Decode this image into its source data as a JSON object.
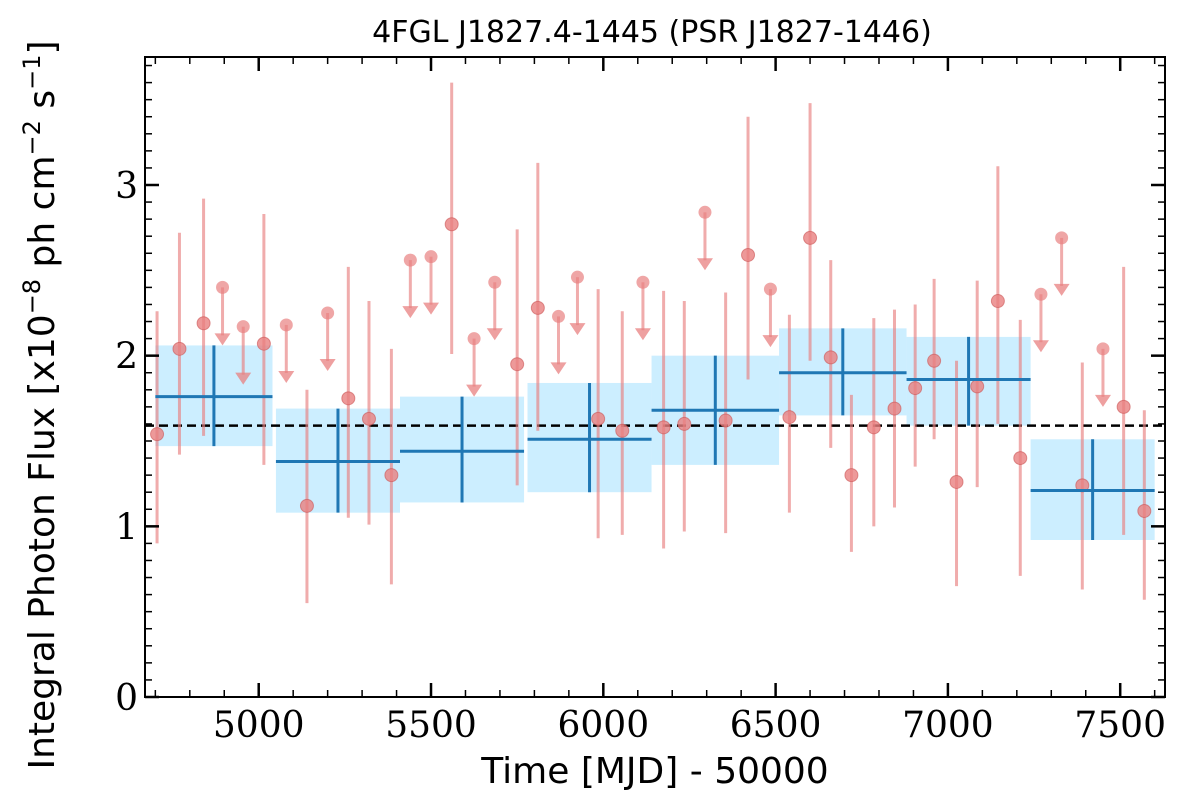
{
  "chart_data": {
    "type": "scatter",
    "title": "4FGL J1827.4-1445 (PSR J1827-1446)",
    "xlabel": "Time [MJD] - 50000",
    "ylabel_main": "Integral Photon Flux [x10",
    "ylabel_exp1": "−8",
    "ylabel_mid": " ph cm",
    "ylabel_exp2": "−2",
    "ylabel_s": " s",
    "ylabel_exp3": "−1",
    "ylabel_end": "]",
    "xlim": [
      4670,
      7630
    ],
    "ylim": [
      0,
      3.75
    ],
    "xticks": [
      5000,
      5500,
      6000,
      6500,
      7000,
      7500
    ],
    "yticks": [
      0,
      1,
      2,
      3
    ],
    "grid": false,
    "reference_line": {
      "y": 1.59,
      "style": "dashed",
      "color": "#000000"
    },
    "colors": {
      "short_bin": "#e88080",
      "long_bin_line": "#1f77b4",
      "long_bin_band": "#cceeff"
    },
    "series": [
      {
        "points": [
          {
            "x": 4705,
            "y": 1.54,
            "ylo": 0.9,
            "yhi": 2.26
          },
          {
            "x": 4770,
            "y": 2.04,
            "ylo": 1.42,
            "yhi": 2.72
          },
          {
            "x": 4840,
            "y": 2.19,
            "ylo": 1.53,
            "yhi": 2.92
          },
          {
            "x": 5015,
            "y": 2.07,
            "ylo": 1.36,
            "yhi": 2.83
          },
          {
            "x": 5140,
            "y": 1.12,
            "ylo": 0.55,
            "yhi": 1.8
          },
          {
            "x": 5260,
            "y": 1.75,
            "ylo": 1.05,
            "yhi": 2.52
          },
          {
            "x": 5320,
            "y": 1.63,
            "ylo": 1.01,
            "yhi": 2.32
          },
          {
            "x": 5385,
            "y": 1.3,
            "ylo": 0.66,
            "yhi": 2.04
          },
          {
            "x": 5560,
            "y": 2.77,
            "ylo": 2.01,
            "yhi": 3.6
          },
          {
            "x": 5750,
            "y": 1.95,
            "ylo": 1.24,
            "yhi": 2.74
          },
          {
            "x": 5810,
            "y": 2.28,
            "ylo": 1.56,
            "yhi": 3.13
          },
          {
            "x": 5985,
            "y": 1.63,
            "ylo": 0.93,
            "yhi": 2.39
          },
          {
            "x": 6055,
            "y": 1.56,
            "ylo": 0.95,
            "yhi": 2.26
          },
          {
            "x": 6175,
            "y": 1.58,
            "ylo": 0.87,
            "yhi": 2.38
          },
          {
            "x": 6235,
            "y": 1.6,
            "ylo": 0.97,
            "yhi": 2.32
          },
          {
            "x": 6355,
            "y": 1.62,
            "ylo": 0.96,
            "yhi": 2.37
          },
          {
            "x": 6420,
            "y": 2.59,
            "ylo": 1.86,
            "yhi": 3.4
          },
          {
            "x": 6540,
            "y": 1.64,
            "ylo": 1.08,
            "yhi": 2.24
          },
          {
            "x": 6600,
            "y": 2.69,
            "ylo": 1.97,
            "yhi": 3.48
          },
          {
            "x": 6660,
            "y": 1.99,
            "ylo": 1.46,
            "yhi": 2.56
          },
          {
            "x": 6720,
            "y": 1.3,
            "ylo": 0.85,
            "yhi": 1.77
          },
          {
            "x": 6785,
            "y": 1.58,
            "ylo": 1.0,
            "yhi": 2.22
          },
          {
            "x": 6845,
            "y": 1.69,
            "ylo": 1.11,
            "yhi": 2.27
          },
          {
            "x": 6905,
            "y": 1.81,
            "ylo": 1.35,
            "yhi": 2.3
          },
          {
            "x": 6960,
            "y": 1.97,
            "ylo": 1.51,
            "yhi": 2.45
          },
          {
            "x": 7025,
            "y": 1.26,
            "ylo": 0.65,
            "yhi": 1.97
          },
          {
            "x": 7085,
            "y": 1.82,
            "ylo": 1.23,
            "yhi": 2.44
          },
          {
            "x": 7145,
            "y": 2.32,
            "ylo": 1.6,
            "yhi": 3.11
          },
          {
            "x": 7210,
            "y": 1.4,
            "ylo": 0.71,
            "yhi": 2.21
          },
          {
            "x": 7390,
            "y": 1.24,
            "ylo": 0.63,
            "yhi": 1.96
          },
          {
            "x": 7510,
            "y": 1.7,
            "ylo": 0.95,
            "yhi": 2.52
          },
          {
            "x": 7570,
            "y": 1.09,
            "ylo": 0.57,
            "yhi": 1.68
          }
        ],
        "upper_limits": [
          {
            "x": 4895,
            "y": 2.4
          },
          {
            "x": 4955,
            "y": 2.17
          },
          {
            "x": 5080,
            "y": 2.18
          },
          {
            "x": 5200,
            "y": 2.25
          },
          {
            "x": 5440,
            "y": 2.56
          },
          {
            "x": 5500,
            "y": 2.58
          },
          {
            "x": 5625,
            "y": 2.1
          },
          {
            "x": 5685,
            "y": 2.43
          },
          {
            "x": 5870,
            "y": 2.23
          },
          {
            "x": 5925,
            "y": 2.46
          },
          {
            "x": 6115,
            "y": 2.43
          },
          {
            "x": 6295,
            "y": 2.84
          },
          {
            "x": 6485,
            "y": 2.39
          },
          {
            "x": 7270,
            "y": 2.36
          },
          {
            "x": 7330,
            "y": 2.69
          },
          {
            "x": 7450,
            "y": 2.04
          }
        ]
      },
      {
        "bins": [
          {
            "x0": 4700,
            "x1": 5040,
            "y": 1.76,
            "ylo": 1.47,
            "yhi": 2.06
          },
          {
            "x0": 5050,
            "x1": 5410,
            "y": 1.38,
            "ylo": 1.08,
            "yhi": 1.69
          },
          {
            "x0": 5410,
            "x1": 5770,
            "y": 1.44,
            "ylo": 1.14,
            "yhi": 1.76
          },
          {
            "x0": 5780,
            "x1": 6140,
            "y": 1.51,
            "ylo": 1.2,
            "yhi": 1.84
          },
          {
            "x0": 6140,
            "x1": 6510,
            "y": 1.68,
            "ylo": 1.36,
            "yhi": 2.0
          },
          {
            "x0": 6510,
            "x1": 6880,
            "y": 1.9,
            "ylo": 1.65,
            "yhi": 2.16
          },
          {
            "x0": 6880,
            "x1": 7240,
            "y": 1.86,
            "ylo": 1.59,
            "yhi": 2.11
          },
          {
            "x0": 7240,
            "x1": 7600,
            "y": 1.21,
            "ylo": 0.92,
            "yhi": 1.51
          }
        ]
      }
    ]
  }
}
